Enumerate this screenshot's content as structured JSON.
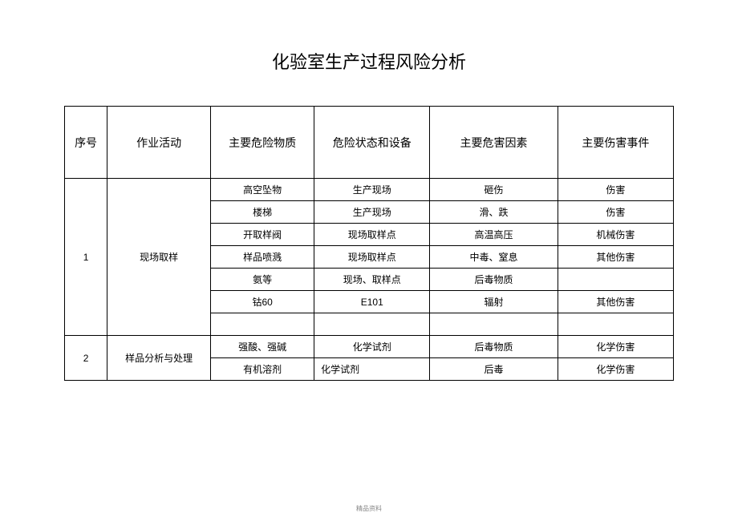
{
  "title": "化验室生产过程风险分析",
  "headers": {
    "index": "序号",
    "activity": "作业活动",
    "substance": "主要危险物质",
    "status": "危险状态和设备",
    "factor": "主要危害因素",
    "injury": "主要伤害事件"
  },
  "sections": [
    {
      "index": "1",
      "activity": "现场取样",
      "rows": [
        {
          "substance": "高空坠物",
          "status": "生产现场",
          "factor": "砸伤",
          "injury": "伤害"
        },
        {
          "substance": "楼梯",
          "status": "生产现场",
          "factor": "滑、跌",
          "injury": "伤害"
        },
        {
          "substance": "开取样阀",
          "status": "现场取样点",
          "factor": "高温高压",
          "injury": "机械伤害"
        },
        {
          "substance": "样品喷溅",
          "status": "现场取样点",
          "factor": "中毒、窒息",
          "injury": "其他伤害"
        },
        {
          "substance": "氨等",
          "status": "现场、取样点",
          "factor": "后毒物质",
          "injury": ""
        },
        {
          "substance": "钴60",
          "status": "E101",
          "factor": "辐射",
          "injury": "其他伤害"
        },
        {
          "substance": "",
          "status": "",
          "factor": "",
          "injury": ""
        }
      ]
    },
    {
      "index": "2",
      "activity": "样品分析与处理",
      "rows": [
        {
          "substance": "强酸、强碱",
          "status": "化学试剂",
          "factor": "后毒物质",
          "injury": "化学伤害"
        },
        {
          "substance": "有机溶剂",
          "status": "化学试剂",
          "status_align": "left",
          "factor": "后毒",
          "injury": "化学伤害"
        }
      ]
    }
  ],
  "footer": "精品资料",
  "styling": {
    "page_bg": "#ffffff",
    "text_color": "#000000",
    "border_color": "#000000",
    "title_fontsize": 22,
    "header_fontsize": 14,
    "cell_fontsize": 12,
    "footer_fontsize": 8,
    "footer_color": "#888888"
  }
}
